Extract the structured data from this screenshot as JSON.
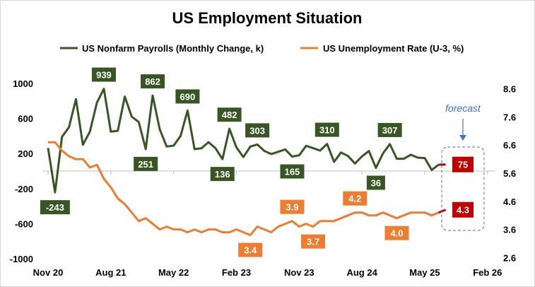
{
  "chart_data": {
    "type": "line",
    "title": "US Employment Situation",
    "x_tick_labels": [
      "Nov 20",
      "Aug 21",
      "May 22",
      "Feb 23",
      "Nov 23",
      "Aug 24",
      "May 25",
      "Feb 26"
    ],
    "x_start": "Nov 2020",
    "x_frequency": "monthly",
    "left_axis": {
      "ticks": [
        1000,
        600,
        200,
        -200,
        -600,
        -1000
      ],
      "ylim": [
        -1000,
        1000
      ]
    },
    "right_axis": {
      "ticks": [
        "8.6",
        "7.6",
        "6.6",
        "5.6",
        "4.6",
        "3.6",
        "2.6"
      ],
      "ylim": [
        2.6,
        8.6
      ]
    },
    "grid": false,
    "legend_position": "top",
    "series": [
      {
        "name": "US Nonfarm Payrolls (Monthly Change, k)",
        "axis": "left",
        "color": "#375623",
        "values": [
          264,
          -243,
          390,
          500,
          820,
          300,
          450,
          780,
          939,
          450,
          460,
          850,
          620,
          560,
          251,
          862,
          480,
          280,
          290,
          400,
          690,
          250,
          260,
          330,
          260,
          136,
          482,
          270,
          160,
          280,
          303,
          230,
          194,
          220,
          247,
          165,
          180,
          288,
          261,
          234,
          310,
          105,
          212,
          172,
          86,
          167,
          229,
          36,
          200,
          307,
          140,
          140,
          186,
          153,
          148,
          13,
          73
        ],
        "forecast": 75,
        "labels": [
          {
            "index": 1,
            "text": "-243",
            "pos": "below"
          },
          {
            "index": 8,
            "text": "939",
            "pos": "above"
          },
          {
            "index": 14,
            "text": "251",
            "pos": "below"
          },
          {
            "index": 15,
            "text": "862",
            "pos": "above"
          },
          {
            "index": 20,
            "text": "690",
            "pos": "above"
          },
          {
            "index": 25,
            "text": "136",
            "pos": "below"
          },
          {
            "index": 26,
            "text": "482",
            "pos": "above"
          },
          {
            "index": 30,
            "text": "303",
            "pos": "above"
          },
          {
            "index": 35,
            "text": "165",
            "pos": "below"
          },
          {
            "index": 40,
            "text": "310",
            "pos": "above"
          },
          {
            "index": 47,
            "text": "36",
            "pos": "below"
          },
          {
            "index": 49,
            "text": "307",
            "pos": "above"
          }
        ],
        "forecast_label": "75"
      },
      {
        "name": "US Unemployment Rate (U-3, %)",
        "axis": "right",
        "color": "#ED7D31",
        "values": [
          6.7,
          6.7,
          6.4,
          6.2,
          6.1,
          6.1,
          5.8,
          5.9,
          5.4,
          5.1,
          4.7,
          4.5,
          4.2,
          3.9,
          4.0,
          3.8,
          3.6,
          3.7,
          3.6,
          3.6,
          3.5,
          3.6,
          3.5,
          3.6,
          3.6,
          3.5,
          3.5,
          3.6,
          3.5,
          3.4,
          3.7,
          3.6,
          3.5,
          3.7,
          3.8,
          3.9,
          3.7,
          3.8,
          3.7,
          3.9,
          3.9,
          3.9,
          4.0,
          4.1,
          4.2,
          4.2,
          4.1,
          4.1,
          4.2,
          4.1,
          4.0,
          4.1,
          4.2,
          4.2,
          4.2,
          4.1,
          4.2
        ],
        "forecast": 4.3,
        "labels": [
          {
            "index": 29,
            "text": "3.4",
            "pos": "below"
          },
          {
            "index": 35,
            "text": "3.9",
            "pos": "above"
          },
          {
            "index": 38,
            "text": "3.7",
            "pos": "below"
          },
          {
            "index": 44,
            "text": "4.2",
            "pos": "above"
          },
          {
            "index": 50,
            "text": "4.0",
            "pos": "below"
          }
        ],
        "forecast_label": "4.3"
      }
    ],
    "annotation": "forecast",
    "colors": {
      "forecast": "#C00000",
      "annotation": "#4472C4",
      "axis": "#bfbfbf"
    }
  }
}
